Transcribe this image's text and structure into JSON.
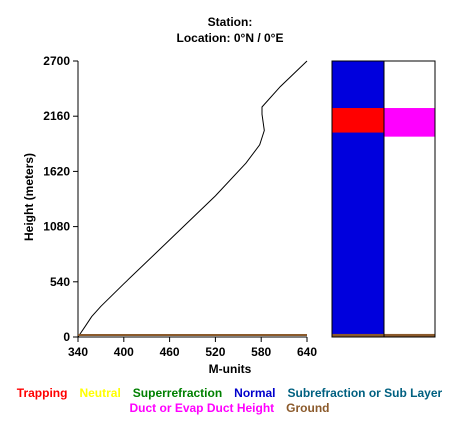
{
  "header": {
    "station_line": "Station:",
    "location_line": "Location:   0°N /   0°E"
  },
  "chart_data": {
    "type": "line",
    "xlabel": "M-units",
    "ylabel": "Height (meters)",
    "xlim": [
      340,
      640
    ],
    "ylim": [
      0,
      2700
    ],
    "xticks": [
      "340",
      "400",
      "460",
      "520",
      "580",
      "640"
    ],
    "yticks": [
      "0",
      "540",
      "1080",
      "1620",
      "2160",
      "2700"
    ],
    "series": [
      {
        "color": "#000000",
        "x": [
          340,
          349,
          358,
          370,
          400,
          460,
          520,
          560,
          578,
          584,
          581,
          581,
          605,
          640
        ],
        "y": [
          0,
          100,
          200,
          300,
          520,
          950,
          1380,
          1700,
          1880,
          2020,
          2180,
          2250,
          2450,
          2700
        ]
      },
      {
        "color": "#8B5A2B",
        "x": [
          340,
          640
        ],
        "y": [
          20,
          20
        ]
      }
    ],
    "profile_bars": {
      "left_column": [
        {
          "category": "Normal",
          "from": 0,
          "to": 2700,
          "color": "#0000DD"
        },
        {
          "category": "Trapping",
          "from": 2000,
          "to": 2240,
          "color": "#FF0000"
        },
        {
          "category": "Ground",
          "from": 0,
          "to": 30,
          "color": "#8B5A2B"
        }
      ],
      "right_column": [
        {
          "category": "Duct or Evap Duct Height",
          "from": 1960,
          "to": 2240,
          "color": "#FF00FF"
        },
        {
          "category": "Ground",
          "from": 0,
          "to": 30,
          "color": "#8B5A2B"
        }
      ]
    }
  },
  "legend": {
    "row1": [
      {
        "label": "Trapping",
        "color": "#FF0000"
      },
      {
        "label": "Neutral",
        "color": "#FFFF00"
      },
      {
        "label": "Superrefraction",
        "color": "#008000"
      },
      {
        "label": "Normal",
        "color": "#0000CC"
      },
      {
        "label": "Subrefraction or Sub Layer",
        "color": "#006080"
      }
    ],
    "row2": [
      {
        "label": "Duct or Evap Duct Height",
        "color": "#FF00FF"
      },
      {
        "label": "Ground",
        "color": "#8B5A2B"
      }
    ]
  }
}
